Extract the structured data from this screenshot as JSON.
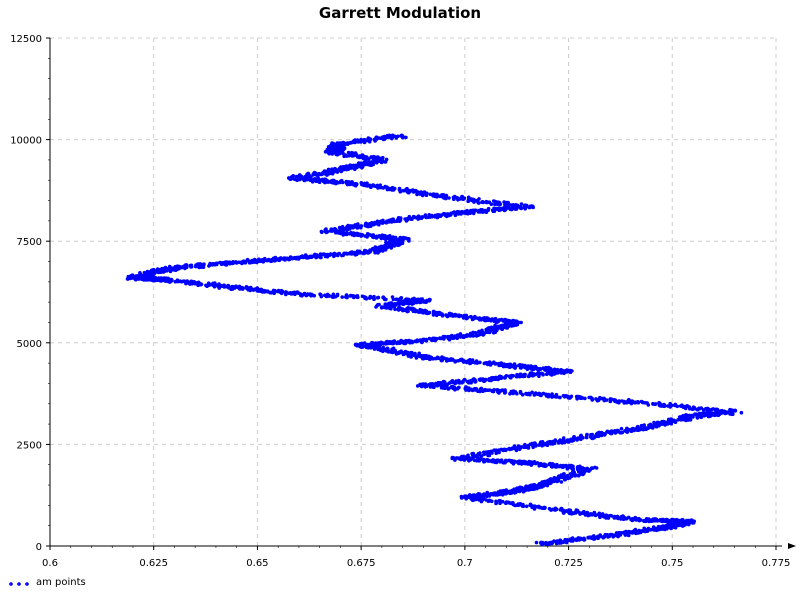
{
  "chart_data": {
    "type": "scatter",
    "title": "Garrett Modulation",
    "xlabel": "",
    "ylabel": "",
    "xlim": [
      0.6,
      0.775
    ],
    "ylim": [
      0,
      12500
    ],
    "x_ticks": [
      "0.6",
      "0.625",
      "0.65",
      "0.675",
      "0.7",
      "0.725",
      "0.75",
      "0.775"
    ],
    "y_ticks": [
      "0",
      "2500",
      "5000",
      "7500",
      "10000",
      "12500"
    ],
    "grid": true,
    "legend": "bottom-left",
    "series": [
      {
        "name": "am points",
        "color": "#0000ff",
        "path": [
          [
            0.718,
            50
          ],
          [
            0.735,
            250
          ],
          [
            0.748,
            450
          ],
          [
            0.754,
            600
          ],
          [
            0.742,
            650
          ],
          [
            0.725,
            850
          ],
          [
            0.7,
            1200
          ],
          [
            0.712,
            1350
          ],
          [
            0.718,
            1500
          ],
          [
            0.73,
            1900
          ],
          [
            0.714,
            2050
          ],
          [
            0.698,
            2150
          ],
          [
            0.715,
            2450
          ],
          [
            0.73,
            2700
          ],
          [
            0.745,
            2950
          ],
          [
            0.755,
            3200
          ],
          [
            0.765,
            3300
          ],
          [
            0.74,
            3550
          ],
          [
            0.715,
            3750
          ],
          [
            0.69,
            3950
          ],
          [
            0.705,
            4100
          ],
          [
            0.725,
            4300
          ],
          [
            0.71,
            4450
          ],
          [
            0.69,
            4650
          ],
          [
            0.675,
            4950
          ],
          [
            0.69,
            5050
          ],
          [
            0.705,
            5250
          ],
          [
            0.712,
            5500
          ],
          [
            0.695,
            5700
          ],
          [
            0.68,
            5900
          ],
          [
            0.69,
            6050
          ],
          [
            0.66,
            6200
          ],
          [
            0.645,
            6350
          ],
          [
            0.628,
            6550
          ],
          [
            0.62,
            6600
          ],
          [
            0.63,
            6850
          ],
          [
            0.648,
            7000
          ],
          [
            0.66,
            7100
          ],
          [
            0.678,
            7250
          ],
          [
            0.685,
            7550
          ],
          [
            0.667,
            7750
          ],
          [
            0.682,
            8000
          ],
          [
            0.7,
            8200
          ],
          [
            0.715,
            8350
          ],
          [
            0.695,
            8600
          ],
          [
            0.675,
            8900
          ],
          [
            0.659,
            9050
          ],
          [
            0.67,
            9250
          ],
          [
            0.68,
            9500
          ],
          [
            0.668,
            9700
          ],
          [
            0.67,
            9900
          ],
          [
            0.685,
            10100
          ]
        ]
      }
    ]
  }
}
